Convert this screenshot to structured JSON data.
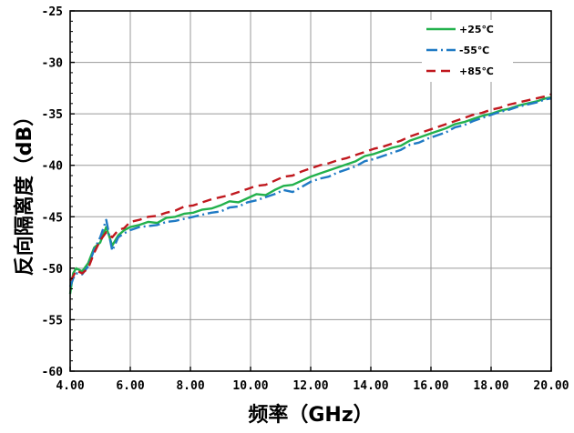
{
  "chart_data": {
    "type": "line",
    "xlabel": "频率（GHz）",
    "ylabel": "反向隔离度（dB）",
    "xlim": [
      4.0,
      20.0
    ],
    "ylim": [
      -60,
      -25
    ],
    "x_ticks": [
      "4.00",
      "6.00",
      "8.00",
      "10.00",
      "12.00",
      "14.00",
      "16.00",
      "18.00",
      "20.00"
    ],
    "y_ticks": [
      "-25",
      "-30",
      "-35",
      "-40",
      "-45",
      "-50",
      "-55",
      "-60"
    ],
    "grid": true,
    "legend_position": "top-right",
    "series": [
      {
        "name": "+25℃",
        "color": "#22b14c",
        "dash": "solid",
        "x": [
          4.0,
          4.1,
          4.2,
          4.4,
          4.6,
          4.8,
          5.0,
          5.2,
          5.4,
          5.6,
          5.8,
          6.0,
          6.3,
          6.6,
          6.9,
          7.2,
          7.5,
          7.8,
          8.1,
          8.4,
          8.7,
          9.0,
          9.3,
          9.6,
          9.9,
          10.2,
          10.5,
          10.8,
          11.1,
          11.4,
          11.7,
          12.0,
          12.3,
          12.6,
          12.9,
          13.2,
          13.5,
          13.8,
          14.1,
          14.4,
          14.7,
          15.0,
          15.3,
          15.6,
          15.9,
          16.2,
          16.5,
          16.8,
          17.1,
          17.4,
          17.7,
          18.0,
          18.3,
          18.6,
          18.9,
          19.2,
          19.5,
          19.8,
          20.0
        ],
        "y": [
          -52.5,
          -50.5,
          -50.0,
          -50.3,
          -49.5,
          -48.0,
          -47.5,
          -46.0,
          -47.8,
          -46.8,
          -46.3,
          -46.0,
          -45.8,
          -45.5,
          -45.6,
          -45.1,
          -45.0,
          -44.7,
          -44.6,
          -44.3,
          -44.2,
          -43.9,
          -43.5,
          -43.6,
          -43.2,
          -42.8,
          -42.9,
          -42.4,
          -42.0,
          -41.9,
          -41.5,
          -41.1,
          -40.8,
          -40.5,
          -40.2,
          -39.9,
          -39.6,
          -39.1,
          -38.9,
          -38.6,
          -38.3,
          -38.1,
          -37.6,
          -37.3,
          -37.0,
          -36.7,
          -36.4,
          -36.0,
          -35.8,
          -35.5,
          -35.2,
          -35.0,
          -34.7,
          -34.5,
          -34.2,
          -34.0,
          -33.8,
          -33.5,
          -33.4
        ]
      },
      {
        "name": "-55℃",
        "color": "#1f7ac4",
        "dash": "dashdot",
        "x": [
          4.0,
          4.1,
          4.2,
          4.4,
          4.6,
          4.8,
          5.0,
          5.2,
          5.4,
          5.6,
          5.8,
          6.0,
          6.3,
          6.6,
          6.9,
          7.2,
          7.5,
          7.8,
          8.1,
          8.4,
          8.7,
          9.0,
          9.3,
          9.6,
          9.9,
          10.2,
          10.5,
          10.8,
          11.1,
          11.4,
          11.7,
          12.0,
          12.3,
          12.6,
          12.9,
          13.2,
          13.5,
          13.8,
          14.1,
          14.4,
          14.7,
          15.0,
          15.3,
          15.6,
          15.9,
          16.2,
          16.5,
          16.8,
          17.1,
          17.4,
          17.7,
          18.0,
          18.3,
          18.6,
          18.9,
          19.2,
          19.5,
          19.8,
          20.0
        ],
        "y": [
          -51.8,
          -51.0,
          -50.5,
          -50.6,
          -49.8,
          -48.2,
          -47.0,
          -45.3,
          -48.3,
          -47.0,
          -46.6,
          -46.3,
          -46.0,
          -45.9,
          -45.8,
          -45.5,
          -45.4,
          -45.2,
          -45.0,
          -44.8,
          -44.6,
          -44.5,
          -44.1,
          -44.0,
          -43.6,
          -43.4,
          -43.1,
          -42.8,
          -42.4,
          -42.6,
          -42.1,
          -41.6,
          -41.3,
          -41.1,
          -40.7,
          -40.4,
          -40.1,
          -39.6,
          -39.4,
          -39.1,
          -38.8,
          -38.5,
          -38.0,
          -37.8,
          -37.4,
          -37.1,
          -36.8,
          -36.3,
          -36.1,
          -35.7,
          -35.4,
          -35.1,
          -34.8,
          -34.6,
          -34.3,
          -34.1,
          -33.9,
          -33.6,
          -33.5
        ]
      },
      {
        "name": "+85℃",
        "color": "#c0181e",
        "dash": "dash",
        "x": [
          4.0,
          4.1,
          4.2,
          4.4,
          4.6,
          4.8,
          5.0,
          5.2,
          5.4,
          5.6,
          5.8,
          6.0,
          6.3,
          6.6,
          6.9,
          7.2,
          7.5,
          7.8,
          8.1,
          8.4,
          8.7,
          9.0,
          9.3,
          9.6,
          9.9,
          10.2,
          10.5,
          10.8,
          11.1,
          11.4,
          11.7,
          12.0,
          12.3,
          12.6,
          12.9,
          13.2,
          13.5,
          13.8,
          14.1,
          14.4,
          14.7,
          15.0,
          15.3,
          15.6,
          15.9,
          16.2,
          16.5,
          16.8,
          17.1,
          17.4,
          17.7,
          18.0,
          18.3,
          18.6,
          18.9,
          19.2,
          19.5,
          19.8,
          20.0
        ],
        "y": [
          -51.2,
          -50.8,
          -50.2,
          -50.5,
          -50.0,
          -48.5,
          -47.3,
          -46.5,
          -47.0,
          -46.3,
          -46.1,
          -45.5,
          -45.3,
          -45.0,
          -44.9,
          -44.6,
          -44.4,
          -44.0,
          -43.9,
          -43.6,
          -43.3,
          -43.1,
          -42.9,
          -42.6,
          -42.3,
          -42.0,
          -41.9,
          -41.5,
          -41.1,
          -41.0,
          -40.6,
          -40.3,
          -40.0,
          -39.8,
          -39.5,
          -39.3,
          -39.0,
          -38.7,
          -38.4,
          -38.2,
          -37.9,
          -37.6,
          -37.2,
          -36.9,
          -36.6,
          -36.3,
          -36.0,
          -35.7,
          -35.4,
          -35.1,
          -34.9,
          -34.6,
          -34.4,
          -34.1,
          -33.9,
          -33.7,
          -33.5,
          -33.3,
          -33.1
        ]
      }
    ]
  }
}
